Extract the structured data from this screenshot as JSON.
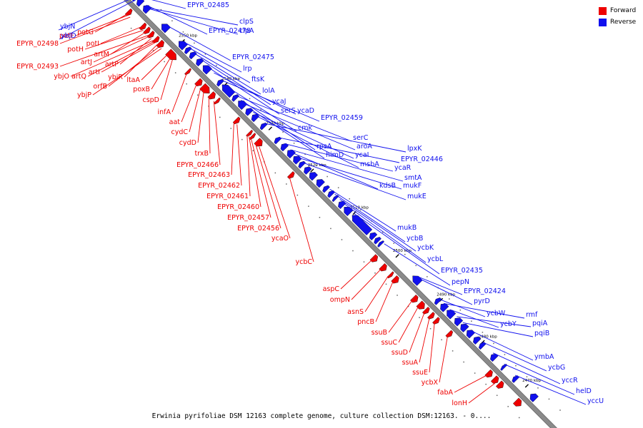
{
  "legend": {
    "forward": {
      "label": "Forward",
      "color": "#ee0000"
    },
    "reverse": {
      "label": "Reverse",
      "color": "#1010ee"
    }
  },
  "caption": "Erwinia pyrifoliae DSM 12163 complete genome, culture collection DSM:12163. - 0....",
  "ticks": [
    "2560 kbp",
    "2550 kbp",
    "2540 kbp",
    "2530 kbp",
    "2520 kbp",
    "2510 kbp",
    "2500 kbp",
    "2490 kbp",
    "2480 kbp",
    "2470 kbp"
  ],
  "forward_labels": [
    "potG",
    "potF",
    "EPYR_02498",
    "potI",
    "potH",
    "artM",
    "EPYR_02493",
    "artJ",
    "artP",
    "ybjO",
    "artQ",
    "artI",
    "ybjR",
    "orfB",
    "ybjP",
    "ltaA",
    "poxB",
    "cspD",
    "infA",
    "aat",
    "cydC",
    "cydD",
    "trxB",
    "EPYR_02466",
    "EPYR_02463",
    "EPYR_02462",
    "EPYR_02461",
    "EPYR_02460",
    "EPYR_02457",
    "EPYR_02456",
    "ycaO",
    "ycbC",
    "aspC",
    "ompN",
    "asnS",
    "pncB",
    "ssuB",
    "ssuC",
    "ssuD",
    "ssuA",
    "ssuE",
    "ycbX",
    "fabA",
    "lonH"
  ],
  "reverse_labels": [
    "ybjN",
    "EPYR_02485",
    "ybjD",
    "EPYR_02478",
    "clpS",
    "clpA",
    "EPYR_02475",
    "lrp",
    "ftsK",
    "lolA",
    "ycaJ",
    "serS",
    "ycaD",
    "EPYR_02459",
    "cmk",
    "serC",
    "rpsA",
    "aroA",
    "himD",
    "ycaI",
    "msbA",
    "lpxK",
    "EPYR_02446",
    "ycaR",
    "smtA",
    "kdsB",
    "mukF",
    "mukE",
    "mukB",
    "ycbB",
    "ycbK",
    "ycbL",
    "EPYR_02435",
    "pepN",
    "EPYR_02424",
    "pyrD",
    "ycbW",
    "rmf",
    "ycbY",
    "pqiA",
    "pqiB",
    "ymbA",
    "ycbG",
    "yccR",
    "helD",
    "yccU"
  ]
}
